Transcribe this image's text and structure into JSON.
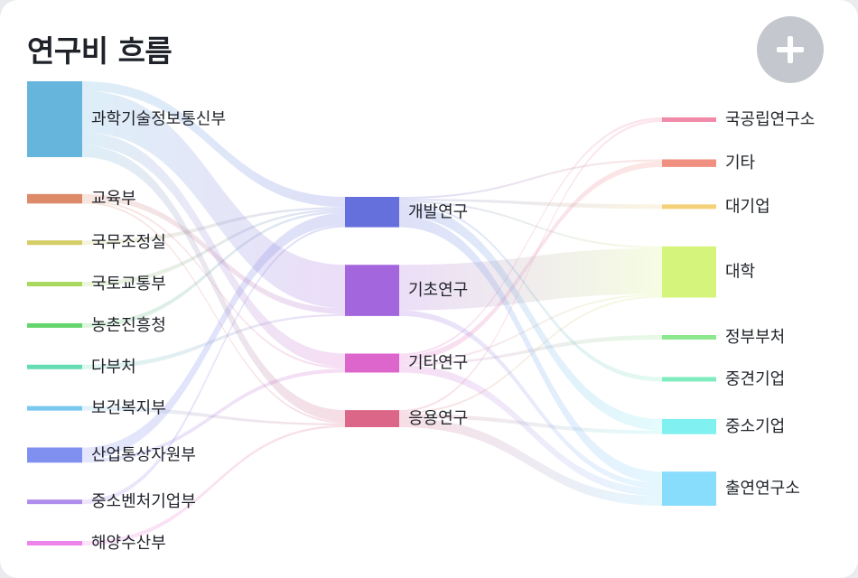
{
  "header": {
    "title": "연구비 흐름",
    "add_icon": "plus-icon"
  },
  "chart_data": {
    "type": "sankey",
    "title": "연구비 흐름",
    "nodes": [
      {
        "name": "과학기술정보통신부",
        "level": 0,
        "value": 40,
        "color": "#66b5dd"
      },
      {
        "name": "교육부",
        "level": 0,
        "value": 5,
        "color": "#dc8a68"
      },
      {
        "name": "국무조정실",
        "level": 0,
        "value": 1,
        "color": "#d4cc64"
      },
      {
        "name": "국토교통부",
        "level": 0,
        "value": 1,
        "color": "#a8d85c"
      },
      {
        "name": "농촌진흥청",
        "level": 0,
        "value": 1,
        "color": "#64d46c"
      },
      {
        "name": "다부처",
        "level": 0,
        "value": 1,
        "color": "#64dcb4"
      },
      {
        "name": "보건복지부",
        "level": 0,
        "value": 1,
        "color": "#78c8f0"
      },
      {
        "name": "산업통상자원부",
        "level": 0,
        "value": 8,
        "color": "#8090f0"
      },
      {
        "name": "중소벤처기업부",
        "level": 0,
        "value": 1,
        "color": "#b08cec"
      },
      {
        "name": "해양수산부",
        "level": 0,
        "value": 1,
        "color": "#ec84ec"
      },
      {
        "name": "개발연구",
        "level": 1,
        "value": 16,
        "color": "#6670dc"
      },
      {
        "name": "기초연구",
        "level": 1,
        "value": 27,
        "color": "#a466dc"
      },
      {
        "name": "기타연구",
        "level": 1,
        "value": 10,
        "color": "#dc66cc"
      },
      {
        "name": "응용연구",
        "level": 1,
        "value": 9,
        "color": "#dc6688"
      },
      {
        "name": "국공립연구소",
        "level": 2,
        "value": 2,
        "color": "#f08aa8"
      },
      {
        "name": "기타",
        "level": 2,
        "value": 4,
        "color": "#f09080"
      },
      {
        "name": "대기업",
        "level": 2,
        "value": 1,
        "color": "#f4d078"
      },
      {
        "name": "대학",
        "level": 2,
        "value": 27,
        "color": "#d4f47c"
      },
      {
        "name": "정부부처",
        "level": 2,
        "value": 1,
        "color": "#8ce88c"
      },
      {
        "name": "중견기업",
        "level": 2,
        "value": 1,
        "color": "#80ecc0"
      },
      {
        "name": "중소기업",
        "level": 2,
        "value": 8,
        "color": "#80f0f0"
      },
      {
        "name": "출연연구소",
        "level": 2,
        "value": 18,
        "color": "#88dcfc"
      }
    ],
    "links": [
      {
        "source": "과학기술정보통신부",
        "target": "개발연구",
        "value": 5
      },
      {
        "source": "과학기술정보통신부",
        "target": "기초연구",
        "value": 22
      },
      {
        "source": "과학기술정보통신부",
        "target": "기타연구",
        "value": 7
      },
      {
        "source": "과학기술정보통신부",
        "target": "응용연구",
        "value": 6
      },
      {
        "source": "교육부",
        "target": "기초연구",
        "value": 3
      },
      {
        "source": "교육부",
        "target": "기타연구",
        "value": 1
      },
      {
        "source": "교육부",
        "target": "응용연구",
        "value": 1
      },
      {
        "source": "국무조정실",
        "target": "개발연구",
        "value": 1
      },
      {
        "source": "국토교통부",
        "target": "개발연구",
        "value": 1
      },
      {
        "source": "농촌진흥청",
        "target": "개발연구",
        "value": 1
      },
      {
        "source": "다부처",
        "target": "기초연구",
        "value": 1
      },
      {
        "source": "보건복지부",
        "target": "응용연구",
        "value": 1
      },
      {
        "source": "산업통상자원부",
        "target": "개발연구",
        "value": 6
      },
      {
        "source": "산업통상자원부",
        "target": "기타연구",
        "value": 2
      },
      {
        "source": "중소벤처기업부",
        "target": "개발연구",
        "value": 1
      },
      {
        "source": "해양수산부",
        "target": "응용연구",
        "value": 1
      },
      {
        "source": "개발연구",
        "target": "중소기업",
        "value": 6
      },
      {
        "source": "개발연구",
        "target": "출연연구소",
        "value": 6
      },
      {
        "source": "개발연구",
        "target": "대학",
        "value": 1
      },
      {
        "source": "개발연구",
        "target": "기타",
        "value": 1
      },
      {
        "source": "개발연구",
        "target": "대기업",
        "value": 1
      },
      {
        "source": "개발연구",
        "target": "중견기업",
        "value": 1
      },
      {
        "source": "기초연구",
        "target": "대학",
        "value": 24
      },
      {
        "source": "기초연구",
        "target": "출연연구소",
        "value": 3
      },
      {
        "source": "기타연구",
        "target": "기타",
        "value": 3
      },
      {
        "source": "기타연구",
        "target": "국공립연구소",
        "value": 1
      },
      {
        "source": "기타연구",
        "target": "출연연구소",
        "value": 4
      },
      {
        "source": "기타연구",
        "target": "대학",
        "value": 1
      },
      {
        "source": "기타연구",
        "target": "정부부처",
        "value": 1
      },
      {
        "source": "응용연구",
        "target": "출연연구소",
        "value": 5
      },
      {
        "source": "응용연구",
        "target": "대학",
        "value": 1
      },
      {
        "source": "응용연구",
        "target": "중소기업",
        "value": 2
      },
      {
        "source": "응용연구",
        "target": "국공립연구소",
        "value": 1
      }
    ]
  }
}
